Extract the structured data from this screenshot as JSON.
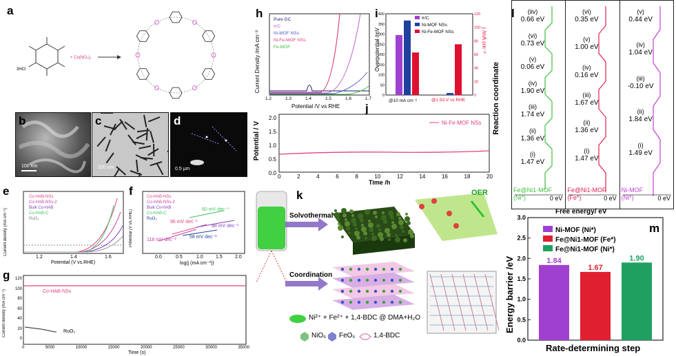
{
  "panels": {
    "a": "a",
    "b": "b",
    "c": "c",
    "d": "d",
    "e": "e",
    "f": "f",
    "g": "g",
    "h": "h",
    "i": "i",
    "j": "j",
    "k": "k",
    "l": "l",
    "m": "m"
  },
  "scale_bars": {
    "b": "100 nm",
    "c": "200 nm",
    "d": "0.5 μm"
  },
  "panel_h": {
    "ylabel": "Current Density /mA cm⁻²",
    "xlabel": "Potential /V vs RHE",
    "legend": [
      "Pure GC",
      "Ir/C",
      "Ni-MOF NSs",
      "Ni-Fe-MOF NSs",
      "Fe-MOF"
    ],
    "colors": [
      "#1a1a6e",
      "#c060d0",
      "#5060c8",
      "#e04080",
      "#40c040"
    ],
    "ticks": [
      "1.2",
      "1.3",
      "1.4",
      "1.5",
      "1.6",
      "1.7"
    ]
  },
  "panel_i": {
    "ylabel_left": "Overpotential /mV",
    "ylabel_right": "j /mA cm⁻²",
    "legend": [
      "Ir/C",
      "Ni-MOF NSs",
      "Ni-Fe-MOF NSs"
    ],
    "colors": [
      "#a040d0",
      "#2040a0",
      "#e01030"
    ],
    "groups": [
      "@10 mA cm⁻²",
      "@1.53 V vs RHE"
    ],
    "left_ticks": [
      "0",
      "50",
      "100",
      "150",
      "200",
      "250",
      "300",
      "350",
      "400"
    ],
    "right_ticks": [
      "0",
      "20",
      "40",
      "60",
      "80",
      "100",
      "120"
    ]
  },
  "panel_j": {
    "ylabel": "Potential / V",
    "xlabel": "Time /h",
    "legend": "Ni-Fe-MOF NSs",
    "yticks": [
      "0.0",
      "0.5",
      "1.0",
      "1.5",
      "2.0"
    ],
    "xticks": [
      "0",
      "2",
      "4",
      "6",
      "8",
      "10",
      "12",
      "14",
      "16",
      "18",
      "20"
    ]
  },
  "panel_e": {
    "ylabel": "Current density (mA cm⁻²)",
    "xlabel": "Potential (V vs.RHE)",
    "legend": [
      "Co-HAB-NSs",
      "Co-HAB-NSs-2",
      "Bulk Co-HAB",
      "Co-HAB-C",
      "RuO₂"
    ],
    "ticks": [
      "1.2",
      "1.4",
      "1.6"
    ]
  },
  "panel_f": {
    "ylabel": "Potential (V vs.RHE)",
    "xlabel": "log(j (mA cm⁻²))",
    "legend": [
      "Co-HAB-NSs",
      "Co-HAB-NSs-2",
      "Bulk Co-HAB",
      "Co-HAB-C",
      "RuO₂"
    ],
    "ticks": [
      "0.0",
      "0.5",
      "1.0",
      "1.5",
      "2.0"
    ],
    "tafel": [
      "96 mV dec⁻¹",
      "118 mV dec⁻¹",
      "60 mV dec⁻¹",
      "88 mV dec⁻¹",
      "58 mV dec⁻¹"
    ]
  },
  "panel_g": {
    "ylabel": "Current density (mA cm⁻²)",
    "xlabel": "Time (s)",
    "series": [
      "Co-HAB-NSs",
      "RuO₂"
    ],
    "xticks": [
      "0",
      "5000",
      "10000",
      "15000",
      "20000",
      "25000",
      "30000",
      "35000"
    ],
    "yticks": [
      "0",
      "20",
      "40",
      "60",
      "80",
      "100",
      "120"
    ]
  },
  "panel_k": {
    "solvothermal": "Solvothermal",
    "coordination": "Coordination",
    "oer": "OER",
    "recipe": "Ni²⁺ + Fe²⁺ + 1,4-BDC @ DMA+H₂O",
    "legend_nio6": "NiO₆",
    "legend_feo6": "FeO₆",
    "legend_bdc": "1,4-BDC"
  },
  "panel_l": {
    "ylabel": "Reaction coordinate",
    "xlabel": "Free energy/ eV",
    "col1": {
      "name": "Fe@Ni1-MOF",
      "site": "(Ni*)",
      "color": "#40c040",
      "steps": [
        {
          "tag": "(iiv)",
          "val": "0.66 eV"
        },
        {
          "tag": "(vi)",
          "val": "0.73 eV"
        },
        {
          "tag": "(v)",
          "val": "0.06 eV"
        },
        {
          "tag": "(iv)",
          "val": "1.90 eV"
        },
        {
          "tag": "(iii)",
          "val": "1.74 eV"
        },
        {
          "tag": "(ii)",
          "val": "1.36 eV"
        },
        {
          "tag": "(i)",
          "val": "1.47 eV"
        }
      ],
      "zero": "0 eV"
    },
    "col2": {
      "name": "Fe@Ni1-MOF",
      "site": "(Fe*)",
      "color": "#e02050",
      "steps": [
        {
          "tag": "(vi)",
          "val": "0.35 eV"
        },
        {
          "tag": "(v)",
          "val": "1.00 eV"
        },
        {
          "tag": "(iv)",
          "val": "0.16 eV"
        },
        {
          "tag": "(iii)",
          "val": "1.67 eV"
        },
        {
          "tag": "(ii)",
          "val": "1.36 eV"
        },
        {
          "tag": "(i)",
          "val": "1.47 eV"
        }
      ],
      "zero": "0 eV"
    },
    "col3": {
      "name": "Ni-MOF",
      "site": "(Ni*)",
      "color": "#c040d0",
      "steps": [
        {
          "tag": "(v)",
          "val": "0.44 eV"
        },
        {
          "tag": "(iv)",
          "val": "1.04 eV"
        },
        {
          "tag": "(iii)",
          "val": "-0.10 eV"
        },
        {
          "tag": "(ii)",
          "val": "1.84 eV"
        },
        {
          "tag": "(i)",
          "val": "1.49 eV"
        }
      ],
      "zero": "0 eV"
    }
  },
  "chart_data": [
    {
      "type": "bar",
      "panel": "m",
      "categories": [
        "Ni-MOF (Ni*)",
        "Fe@Ni1-MOF (Fe*)",
        "Fe@Ni1-MOF (Ni*)"
      ],
      "values": [
        1.84,
        1.67,
        1.9
      ],
      "colors": [
        "#a040d0",
        "#e02030",
        "#20a060"
      ],
      "xlabel": "Rate-determining step",
      "ylabel": "Energy barrier /eV",
      "ylim": [
        0,
        3.0
      ],
      "yticks": [
        "0.0",
        "0.5",
        "1.0",
        "1.5",
        "2.0",
        "2.5",
        "3.0"
      ],
      "value_labels": [
        "1.84",
        "1.67",
        "1.90"
      ]
    },
    {
      "type": "bar",
      "panel": "i",
      "categories": [
        "@10 mA cm⁻²",
        "@1.53 V vs RHE"
      ],
      "series": [
        {
          "name": "Ir/C",
          "values": [
            310,
            0
          ]
        },
        {
          "name": "Ni-MOF NSs",
          "values": [
            385,
            3
          ]
        },
        {
          "name": "Ni-Fe-MOF NSs",
          "values": [
            220,
            75
          ]
        }
      ]
    }
  ]
}
